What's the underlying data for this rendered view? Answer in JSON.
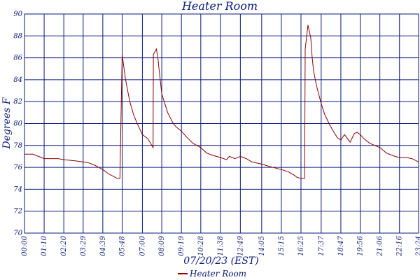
{
  "chart_data": {
    "type": "line",
    "title": "Heater Room",
    "xlabel": "07/20/23 (EST)",
    "ylabel": "Degrees F",
    "ylim": [
      70,
      90
    ],
    "yticks": [
      70,
      72,
      74,
      76,
      78,
      80,
      82,
      84,
      86,
      88,
      90
    ],
    "xticks": [
      "00:00",
      "01:10",
      "02:20",
      "03:29",
      "04:39",
      "05:48",
      "07:00",
      "08:09",
      "09:19",
      "10:28",
      "11:38",
      "12:49",
      "14:05",
      "15:15",
      "16:25",
      "17:37",
      "18:47",
      "19:56",
      "21:06",
      "22:16",
      "23:24"
    ],
    "grid": true,
    "legend_position": "bottom-center",
    "colors": {
      "series": "#8b0000",
      "grid": "#0a1a7a",
      "text": "#0a1a7a"
    },
    "series": [
      {
        "name": "Heater Room",
        "x": [
          "00:00",
          "00:30",
          "01:00",
          "01:10",
          "02:00",
          "02:20",
          "03:00",
          "03:29",
          "03:50",
          "04:10",
          "04:39",
          "05:00",
          "05:15",
          "05:30",
          "05:40",
          "05:48",
          "06:00",
          "06:15",
          "06:30",
          "06:45",
          "07:00",
          "07:20",
          "07:38",
          "07:39",
          "07:50",
          "07:55",
          "08:00",
          "08:09",
          "08:30",
          "08:50",
          "09:00",
          "09:19",
          "09:40",
          "10:00",
          "10:28",
          "10:50",
          "11:10",
          "11:38",
          "12:00",
          "12:10",
          "12:30",
          "12:49",
          "13:10",
          "13:30",
          "14:05",
          "14:30",
          "15:00",
          "15:15",
          "15:40",
          "16:00",
          "16:10",
          "16:25",
          "16:38",
          "16:40",
          "16:50",
          "17:00",
          "17:05",
          "17:10",
          "17:20",
          "17:37",
          "17:50",
          "18:05",
          "18:20",
          "18:35",
          "18:47",
          "19:00",
          "19:20",
          "19:35",
          "19:45",
          "19:56",
          "20:10",
          "20:30",
          "21:06",
          "21:30",
          "22:00",
          "22:16",
          "22:40",
          "23:00",
          "23:24"
        ],
        "values": [
          77.2,
          77.2,
          76.9,
          76.8,
          76.8,
          76.7,
          76.6,
          76.5,
          76.4,
          76.2,
          75.8,
          75.4,
          75.2,
          75.0,
          75.0,
          86.3,
          84.0,
          82.0,
          80.7,
          79.8,
          79.0,
          78.6,
          77.8,
          86.3,
          86.8,
          86.0,
          84.8,
          82.7,
          81.0,
          80.0,
          79.7,
          79.3,
          78.7,
          78.2,
          77.8,
          77.3,
          77.1,
          76.9,
          76.7,
          77.0,
          76.8,
          77.0,
          76.8,
          76.5,
          76.3,
          76.1,
          75.9,
          75.8,
          75.6,
          75.3,
          75.1,
          75.0,
          75.0,
          86.8,
          89.0,
          87.8,
          86.0,
          84.8,
          83.5,
          81.8,
          80.8,
          80.0,
          79.3,
          78.7,
          78.5,
          79.0,
          78.3,
          79.1,
          79.2,
          79.0,
          78.6,
          78.2,
          77.8,
          77.3,
          77.0,
          76.9,
          76.9,
          76.8,
          76.5
        ]
      }
    ]
  }
}
